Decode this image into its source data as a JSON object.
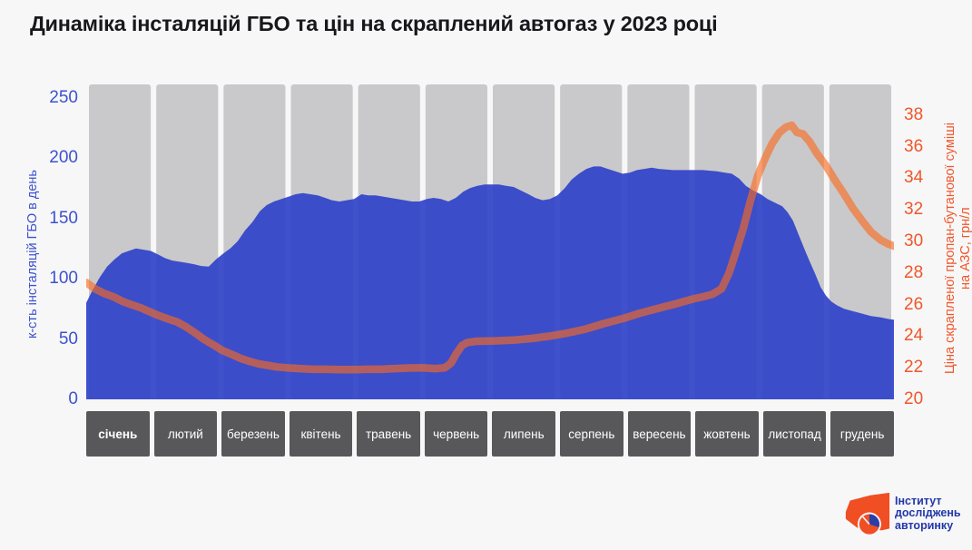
{
  "title": "Динаміка інсталяцій ГБО та цін на скраплений автогаз у 2023 році",
  "colors": {
    "background": "#f7f7f8",
    "column_gray": "#c9c9cb",
    "area_blue": "#3144c8",
    "line_orange": "#fa6a1e",
    "left_axis_text": "#3d52ce",
    "right_axis_text": "#f1562a",
    "month_box": "#58585a",
    "month_text": "#ffffff",
    "title_text": "#17171c",
    "logo_orange": "#f04e23",
    "logo_blue": "#2b3ea8"
  },
  "chart_data": {
    "type": "area",
    "title": "Динаміка інсталяцій ГБО та цін на скраплений автогаз у 2023 році",
    "categories": [
      "січень",
      "лютий",
      "березень",
      "квітень",
      "травень",
      "червень",
      "липень",
      "серпень",
      "вересень",
      "жовтень",
      "листопад",
      "грудень"
    ],
    "grid": false,
    "left_axis": {
      "label": "к-сть інсталяцій ГБО в день",
      "ticks": [
        0,
        50,
        100,
        150,
        200,
        250
      ],
      "range": [
        0,
        250
      ]
    },
    "right_axis": {
      "label": "Ціна скрапленої пропан-бутанової суміші на АЗС, грн/л",
      "label_lines": [
        "Ціна скрапленої пропан-бутанової суміші",
        "на АЗС, грн/л"
      ],
      "ticks": [
        20,
        22,
        24,
        26,
        28,
        30,
        32,
        34,
        36,
        38
      ],
      "range": [
        20,
        38
      ]
    },
    "series": [
      {
        "name": "Кількість інсталяцій ГБО в день",
        "type": "area",
        "axis": "left",
        "fill_opacity": 0.93,
        "x_unit": "month (0 = початок січня, 12 = кінець грудня)",
        "points": [
          [
            0.0,
            80
          ],
          [
            0.09,
            90
          ],
          [
            0.2,
            101
          ],
          [
            0.31,
            110
          ],
          [
            0.42,
            116
          ],
          [
            0.53,
            121
          ],
          [
            0.63,
            123
          ],
          [
            0.74,
            125
          ],
          [
            0.85,
            124
          ],
          [
            0.96,
            123
          ],
          [
            1.07,
            120
          ],
          [
            1.17,
            117
          ],
          [
            1.28,
            115
          ],
          [
            1.39,
            114
          ],
          [
            1.5,
            113
          ],
          [
            1.6,
            112
          ],
          [
            1.71,
            110.5
          ],
          [
            1.82,
            110
          ],
          [
            1.93,
            116
          ],
          [
            2.04,
            121
          ],
          [
            2.14,
            125
          ],
          [
            2.25,
            131
          ],
          [
            2.36,
            140
          ],
          [
            2.47,
            147
          ],
          [
            2.58,
            156
          ],
          [
            2.68,
            161
          ],
          [
            2.79,
            164
          ],
          [
            2.9,
            166
          ],
          [
            3.01,
            168
          ],
          [
            3.11,
            170
          ],
          [
            3.22,
            171
          ],
          [
            3.33,
            170
          ],
          [
            3.44,
            169
          ],
          [
            3.55,
            167
          ],
          [
            3.65,
            165
          ],
          [
            3.76,
            164
          ],
          [
            3.87,
            165
          ],
          [
            3.98,
            166
          ],
          [
            4.09,
            170
          ],
          [
            4.19,
            169
          ],
          [
            4.3,
            169
          ],
          [
            4.41,
            168
          ],
          [
            4.52,
            167
          ],
          [
            4.62,
            166
          ],
          [
            4.73,
            165
          ],
          [
            4.84,
            164
          ],
          [
            4.95,
            164
          ],
          [
            5.06,
            166
          ],
          [
            5.16,
            167
          ],
          [
            5.27,
            166
          ],
          [
            5.38,
            164
          ],
          [
            5.49,
            167
          ],
          [
            5.6,
            172
          ],
          [
            5.7,
            175
          ],
          [
            5.81,
            177
          ],
          [
            5.92,
            178
          ],
          [
            6.03,
            178
          ],
          [
            6.13,
            178
          ],
          [
            6.24,
            177
          ],
          [
            6.35,
            176
          ],
          [
            6.46,
            173
          ],
          [
            6.57,
            170
          ],
          [
            6.67,
            167
          ],
          [
            6.78,
            165
          ],
          [
            6.89,
            166
          ],
          [
            7.0,
            169
          ],
          [
            7.11,
            175
          ],
          [
            7.21,
            182
          ],
          [
            7.32,
            187
          ],
          [
            7.43,
            191
          ],
          [
            7.54,
            193
          ],
          [
            7.64,
            193
          ],
          [
            7.75,
            191
          ],
          [
            7.86,
            189
          ],
          [
            7.97,
            187
          ],
          [
            8.08,
            188
          ],
          [
            8.18,
            190
          ],
          [
            8.29,
            191
          ],
          [
            8.4,
            192
          ],
          [
            8.51,
            191
          ],
          [
            8.72,
            190
          ],
          [
            8.94,
            190
          ],
          [
            9.16,
            190
          ],
          [
            9.37,
            189
          ],
          [
            9.48,
            188
          ],
          [
            9.59,
            187
          ],
          [
            9.7,
            183
          ],
          [
            9.8,
            177
          ],
          [
            9.91,
            173
          ],
          [
            10.02,
            170
          ],
          [
            10.12,
            166
          ],
          [
            10.23,
            163
          ],
          [
            10.34,
            160
          ],
          [
            10.42,
            155
          ],
          [
            10.5,
            148
          ],
          [
            10.58,
            137
          ],
          [
            10.66,
            126
          ],
          [
            10.75,
            114
          ],
          [
            10.83,
            104
          ],
          [
            10.91,
            93
          ],
          [
            10.99,
            86
          ],
          [
            11.07,
            81
          ],
          [
            11.15,
            78
          ],
          [
            11.26,
            75
          ],
          [
            11.39,
            73
          ],
          [
            11.53,
            71
          ],
          [
            11.66,
            69
          ],
          [
            11.8,
            68
          ],
          [
            11.93,
            66.5
          ],
          [
            12.0,
            66
          ]
        ]
      },
      {
        "name": "Ціна скрапленої пропан-бутанової суміші на АЗС, грн/л",
        "type": "line",
        "axis": "right",
        "opacity": 0.63,
        "stroke_width": 8.5,
        "x_unit": "month (0 = початок січня, 12 = кінець грудня)",
        "points": [
          [
            0.0,
            27.4
          ],
          [
            0.13,
            27.0
          ],
          [
            0.27,
            26.7
          ],
          [
            0.4,
            26.5
          ],
          [
            0.54,
            26.2
          ],
          [
            0.67,
            26.0
          ],
          [
            0.81,
            25.8
          ],
          [
            0.94,
            25.55
          ],
          [
            1.08,
            25.3
          ],
          [
            1.21,
            25.1
          ],
          [
            1.35,
            24.9
          ],
          [
            1.48,
            24.6
          ],
          [
            1.62,
            24.2
          ],
          [
            1.75,
            23.8
          ],
          [
            1.89,
            23.45
          ],
          [
            2.02,
            23.1
          ],
          [
            2.16,
            22.85
          ],
          [
            2.29,
            22.6
          ],
          [
            2.43,
            22.4
          ],
          [
            2.56,
            22.25
          ],
          [
            2.7,
            22.15
          ],
          [
            2.83,
            22.05
          ],
          [
            2.97,
            22.0
          ],
          [
            3.17,
            21.95
          ],
          [
            3.37,
            21.9
          ],
          [
            3.57,
            21.9
          ],
          [
            3.78,
            21.88
          ],
          [
            3.98,
            21.88
          ],
          [
            4.18,
            21.9
          ],
          [
            4.38,
            21.9
          ],
          [
            4.58,
            21.95
          ],
          [
            4.79,
            21.98
          ],
          [
            4.99,
            22.0
          ],
          [
            5.19,
            21.95
          ],
          [
            5.33,
            22.0
          ],
          [
            5.42,
            22.3
          ],
          [
            5.5,
            22.9
          ],
          [
            5.58,
            23.4
          ],
          [
            5.66,
            23.6
          ],
          [
            5.8,
            23.68
          ],
          [
            6.07,
            23.7
          ],
          [
            6.34,
            23.75
          ],
          [
            6.61,
            23.85
          ],
          [
            6.88,
            24.0
          ],
          [
            7.15,
            24.2
          ],
          [
            7.42,
            24.45
          ],
          [
            7.69,
            24.8
          ],
          [
            7.96,
            25.1
          ],
          [
            8.22,
            25.45
          ],
          [
            8.49,
            25.75
          ],
          [
            8.76,
            26.05
          ],
          [
            9.01,
            26.35
          ],
          [
            9.17,
            26.5
          ],
          [
            9.3,
            26.65
          ],
          [
            9.44,
            27.0
          ],
          [
            9.55,
            28.0
          ],
          [
            9.65,
            29.3
          ],
          [
            9.76,
            30.8
          ],
          [
            9.87,
            32.6
          ],
          [
            9.98,
            34.2
          ],
          [
            10.09,
            35.3
          ],
          [
            10.19,
            36.2
          ],
          [
            10.3,
            36.9
          ],
          [
            10.4,
            37.25
          ],
          [
            10.48,
            37.35
          ],
          [
            10.56,
            36.9
          ],
          [
            10.65,
            36.8
          ],
          [
            10.75,
            36.3
          ],
          [
            10.85,
            35.6
          ],
          [
            10.99,
            34.8
          ],
          [
            11.12,
            33.9
          ],
          [
            11.26,
            33.0
          ],
          [
            11.39,
            32.1
          ],
          [
            11.53,
            31.3
          ],
          [
            11.66,
            30.6
          ],
          [
            11.8,
            30.1
          ],
          [
            11.91,
            29.85
          ],
          [
            12.0,
            29.7
          ]
        ]
      }
    ]
  },
  "logo": {
    "lines": [
      "Інститут",
      "досліджень",
      "авторинку"
    ]
  }
}
